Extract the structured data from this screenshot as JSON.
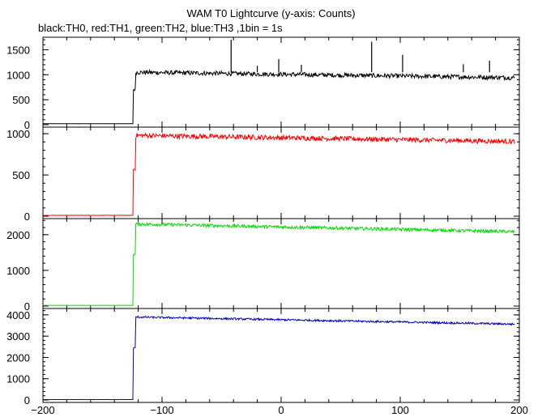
{
  "chart_data": {
    "type": "line",
    "title": "WAM T0 Lightcurve (y-axis: Counts)",
    "subtitle": "black:TH0, red:TH1, green:TH2, blue:TH3 ,1bin = 1s",
    "xlabel": "",
    "xlim": [
      -200,
      200
    ],
    "x_ticks": [
      -200,
      -100,
      0,
      100,
      200
    ],
    "x_tick_labels": [
      "−200",
      "−100",
      "0",
      "100",
      "200"
    ],
    "grid": false,
    "panels": [
      {
        "name": "TH0",
        "color": "#000000",
        "ylim": [
          0,
          1750
        ],
        "y_ticks": [
          0,
          500,
          1000,
          1500
        ],
        "y_tick_labels": [
          "0",
          "500",
          "1000",
          "1500"
        ],
        "pre_level": 20,
        "onset_x": -124,
        "step_level": 700,
        "step_end_x": -122,
        "peak_level": 1050,
        "end_level": 940,
        "noise": 45,
        "spikes": [
          {
            "x": -42,
            "y": 1700
          },
          {
            "x": -20,
            "y": 1180
          },
          {
            "x": -2,
            "y": 1310
          },
          {
            "x": 17,
            "y": 1200
          },
          {
            "x": 76,
            "y": 1660
          },
          {
            "x": 102,
            "y": 1400
          },
          {
            "x": 153,
            "y": 1210
          },
          {
            "x": 175,
            "y": 1280
          }
        ]
      },
      {
        "name": "TH1",
        "color": "#ff0000",
        "ylim": [
          0,
          1080
        ],
        "y_ticks": [
          0,
          500,
          1000
        ],
        "y_tick_labels": [
          "0",
          "500",
          "1000"
        ],
        "pre_level": 10,
        "onset_x": -124,
        "step_level": 570,
        "step_end_x": -122,
        "peak_level": 980,
        "end_level": 905,
        "noise": 30,
        "spikes": []
      },
      {
        "name": "TH2",
        "color": "#00dd00",
        "ylim": [
          0,
          2450
        ],
        "y_ticks": [
          0,
          1000,
          2000
        ],
        "y_tick_labels": [
          "0",
          "1000",
          "2000"
        ],
        "pre_level": 20,
        "onset_x": -124,
        "step_level": 1450,
        "step_end_x": -122,
        "peak_level": 2300,
        "end_level": 2080,
        "noise": 45,
        "spikes": []
      },
      {
        "name": "TH3",
        "color": "#0000bb",
        "ylim": [
          0,
          4300
        ],
        "y_ticks": [
          0,
          1000,
          2000,
          3000,
          4000
        ],
        "y_tick_labels": [
          "0",
          "1000",
          "2000",
          "3000",
          "4000"
        ],
        "pre_level": 20,
        "onset_x": -124,
        "step_level": 2450,
        "step_end_x": -122,
        "peak_level": 3900,
        "end_level": 3560,
        "noise": 45,
        "spikes": []
      }
    ]
  }
}
